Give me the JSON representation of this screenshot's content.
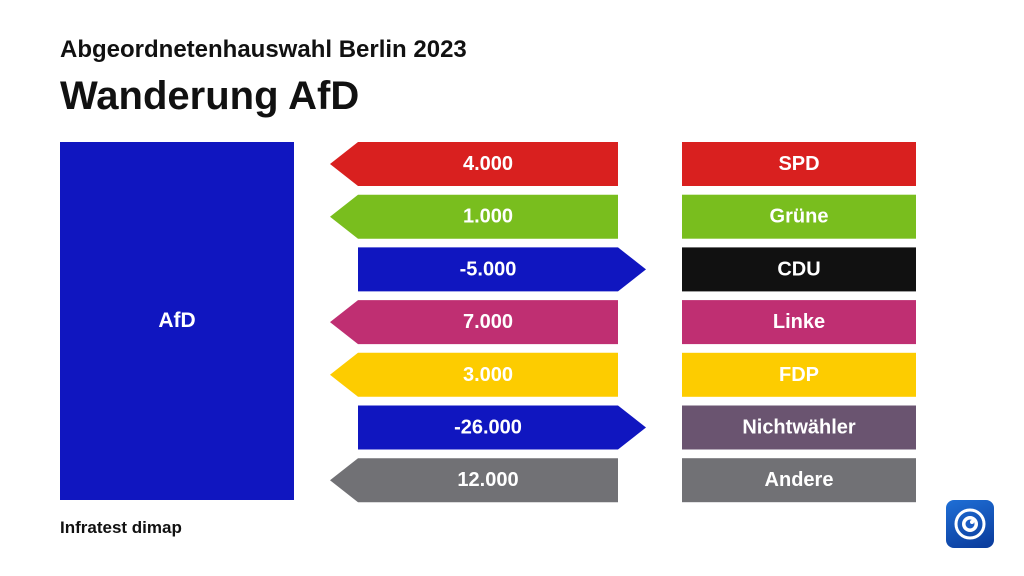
{
  "header": {
    "subtitle": "Abgeordnetenhauswahl Berlin 2023",
    "title": "Wanderung AfD"
  },
  "party": {
    "label": "AfD",
    "color": "#1016c0"
  },
  "source": "Infratest dimap",
  "logo": {
    "icon": "tagesschau-logo-icon"
  },
  "chart_data": {
    "type": "bar",
    "subject": "AfD",
    "rows": [
      {
        "value": "4.000",
        "numeric": 4000,
        "label": "SPD",
        "value_color": "#d9201f",
        "label_color": "#d9201f"
      },
      {
        "value": "1.000",
        "numeric": 1000,
        "label": "Grüne",
        "value_color": "#79be1e",
        "label_color": "#79be1e"
      },
      {
        "value": "-5.000",
        "numeric": -5000,
        "label": "CDU",
        "value_color": "#1016c0",
        "label_color": "#111111"
      },
      {
        "value": "7.000",
        "numeric": 7000,
        "label": "Linke",
        "value_color": "#bf2f72",
        "label_color": "#bf2f72"
      },
      {
        "value": "3.000",
        "numeric": 3000,
        "label": "FDP",
        "value_color": "#fdcc00",
        "label_color": "#fdcc00"
      },
      {
        "value": "-26.000",
        "numeric": -26000,
        "label": "Nichtwähler",
        "value_color": "#1016c0",
        "label_color": "#6a5470"
      },
      {
        "value": "12.000",
        "numeric": 12000,
        "label": "Andere",
        "value_color": "#717175",
        "label_color": "#717175"
      }
    ]
  }
}
